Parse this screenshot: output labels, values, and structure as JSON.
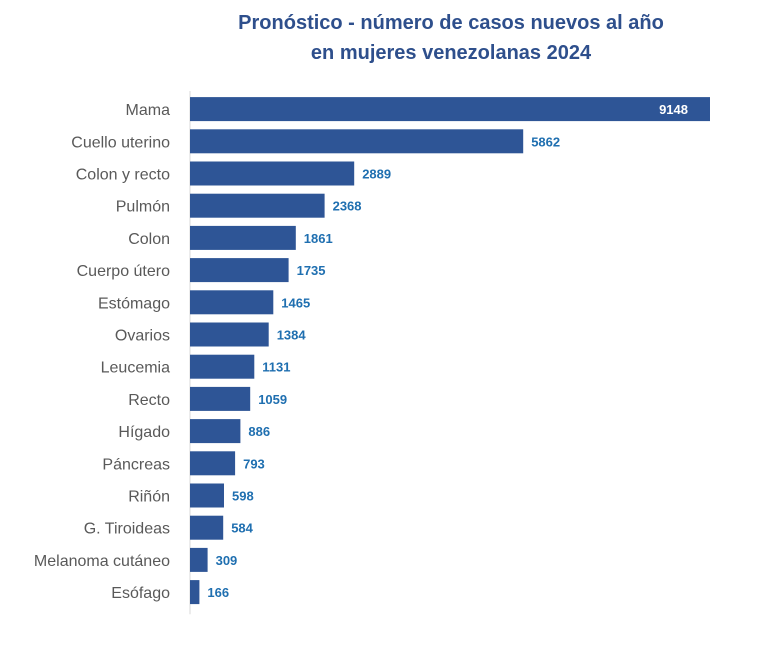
{
  "chart_data": {
    "type": "bar",
    "orientation": "horizontal",
    "title_lines": [
      "Pronóstico - número de casos nuevos al año",
      "en mujeres venezolanas 2024"
    ],
    "categories": [
      "Mama",
      "Cuello uterino",
      "Colon y recto",
      "Pulmón",
      "Colon",
      "Cuerpo útero",
      "Estómago",
      "Ovarios",
      "Leucemia",
      "Recto",
      "Hígado",
      "Páncreas",
      "Riñón",
      "G. Tiroideas",
      "Melanoma cutáneo",
      "Esófago"
    ],
    "values": [
      9148,
      5862,
      2889,
      2368,
      1861,
      1735,
      1465,
      1384,
      1131,
      1059,
      886,
      793,
      598,
      584,
      309,
      166
    ],
    "xlim": [
      0,
      9148
    ],
    "grid": false,
    "legend": "none",
    "colors": {
      "bar": "#2E5596",
      "value_label_outside": "#1F6FB0",
      "value_label_inside": "#FFFFFF",
      "title": "#2E4F8C",
      "category_label": "#595959",
      "axis": "#D9D9D9"
    }
  }
}
